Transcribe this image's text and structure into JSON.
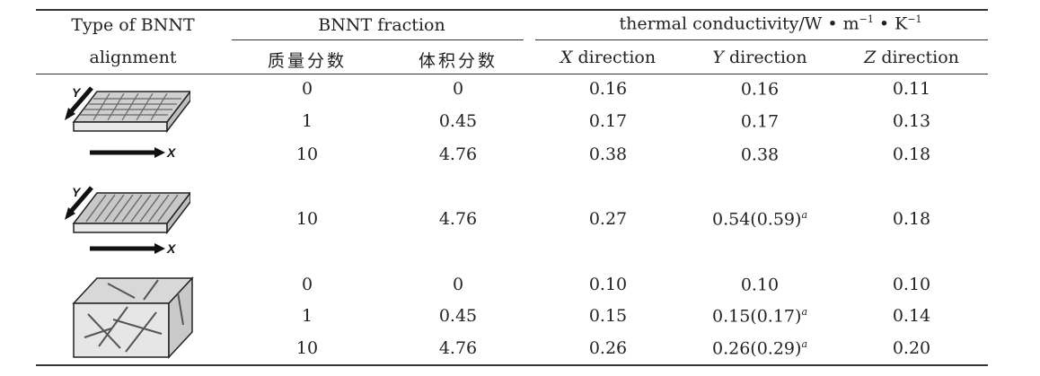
{
  "header": {
    "type_line1": "Type of BNNT",
    "type_line2": "alignment",
    "fraction": "BNNT fraction",
    "tc_text": "thermal conductivity/W • m",
    "tc_exp1": "−1",
    "tc_dot": " • K",
    "tc_exp2": "−1",
    "mass": "质量分数",
    "volume": "体积分数",
    "x_letter": "X",
    "y_letter": "Y",
    "z_letter": "Z",
    "direction": " direction"
  },
  "icons": {
    "axis_x": "X",
    "axis_y": "Y"
  },
  "rows": [
    {
      "mass": "0",
      "vol": "0",
      "x": "0.16",
      "y": "0.16",
      "y_note": "",
      "z": "0.11"
    },
    {
      "mass": "1",
      "vol": "0.45",
      "x": "0.17",
      "y": "0.17",
      "y_note": "",
      "z": "0.13"
    },
    {
      "mass": "10",
      "vol": "4.76",
      "x": "0.38",
      "y": "0.38",
      "y_note": "",
      "z": "0.18"
    },
    {
      "mass": "10",
      "vol": "4.76",
      "x": "0.27",
      "y": "0.54(0.59)",
      "y_note": "a",
      "z": "0.18"
    },
    {
      "mass": "0",
      "vol": "0",
      "x": "0.10",
      "y": "0.10",
      "y_note": "",
      "z": "0.10"
    },
    {
      "mass": "1",
      "vol": "0.45",
      "x": "0.15",
      "y": "0.15(0.17)",
      "y_note": "a",
      "z": "0.14"
    },
    {
      "mass": "10",
      "vol": "4.76",
      "x": "0.26",
      "y": "0.26(0.29)",
      "y_note": "a",
      "z": "0.20"
    }
  ]
}
